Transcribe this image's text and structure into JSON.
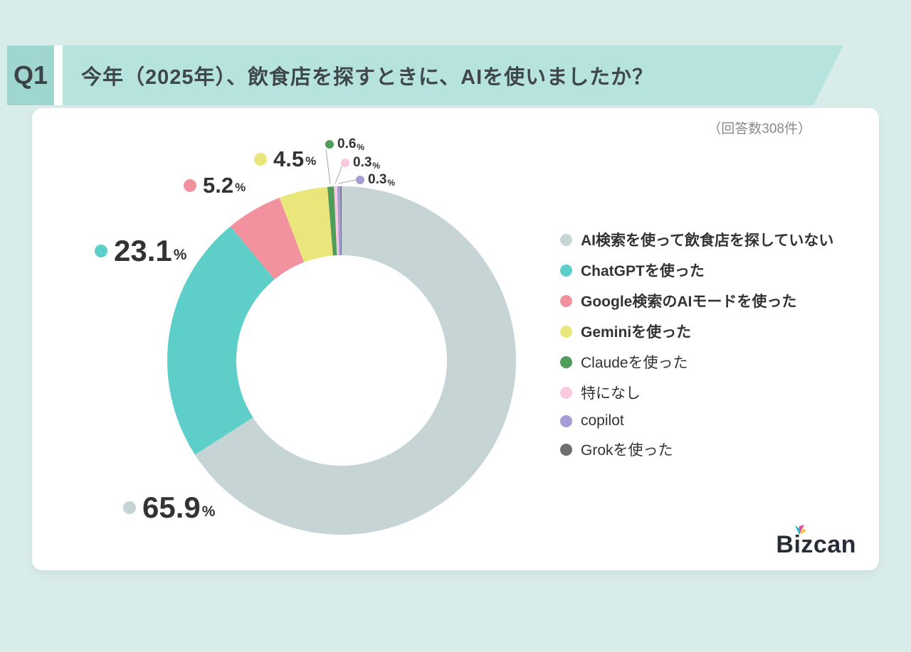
{
  "header": {
    "q_label": "Q1",
    "title": "今年（2025年）、飲食店を探すときに、AIを使いましたか？"
  },
  "card": {
    "response_note": "（回答数308件）"
  },
  "brand": {
    "logo_text": "Bizcan"
  },
  "chart_data": {
    "type": "pie",
    "subtype": "donut",
    "title": "今年（2025年）、飲食店を探すときに、AIを使いましたか？",
    "sample_size_note": "（回答数308件）",
    "percent_suffix": "%",
    "start_angle_deg": 0,
    "direction": "clockwise",
    "legend_position": "right",
    "series": [
      {
        "label": "AI検索を使って飲食店を探していない",
        "value": 65.9,
        "color": "#c6d4d6",
        "bold": true
      },
      {
        "label": "ChatGPTを使った",
        "value": 23.1,
        "color": "#5dcfc8",
        "bold": true
      },
      {
        "label": "Google検索のAIモードを使った",
        "value": 5.2,
        "color": "#f2929f",
        "bold": true
      },
      {
        "label": "Geminiを使った",
        "value": 4.5,
        "color": "#e9e67c",
        "bold": true
      },
      {
        "label": "Claudeを使った",
        "value": 0.6,
        "color": "#4e9d5b",
        "bold": false
      },
      {
        "label": "特になし",
        "value": 0.3,
        "color": "#f9c9de",
        "bold": false
      },
      {
        "label": "copilot",
        "value": 0.3,
        "color": "#a69dd6",
        "bold": false
      },
      {
        "label": "Grokを使った",
        "value": 0.1,
        "color": "#6f6f6f",
        "bold": false
      }
    ]
  }
}
